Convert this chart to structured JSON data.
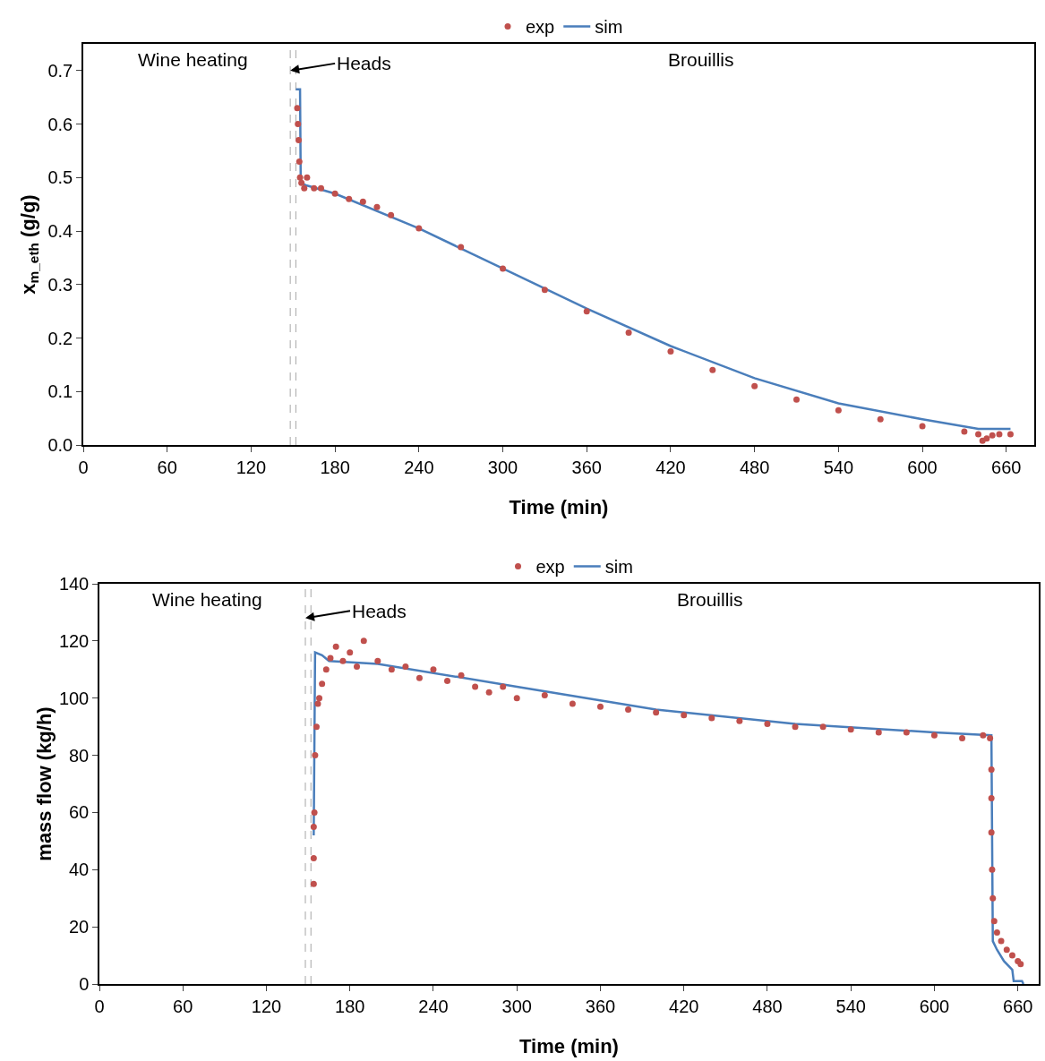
{
  "chart_data": [
    {
      "type": "scatter",
      "xlabel": "Time (min)",
      "ylabel": "x$_{m_eth}$ (g/g)",
      "xlim": [
        0,
        680
      ],
      "xticks": [
        0,
        60,
        120,
        180,
        240,
        300,
        360,
        420,
        480,
        540,
        600,
        660
      ],
      "ylim": [
        0,
        0.75
      ],
      "yticks": [
        {
          "value": 0,
          "label": "0.0"
        },
        0.1,
        0.2,
        0.3,
        0.4,
        0.5,
        0.6,
        0.7
      ],
      "grid": false,
      "legend": "top",
      "annotations": [
        "Wine heating",
        {
          "text": "Heads",
          "x": 148,
          "y": 0.7
        },
        "Brouillis"
      ],
      "ref_lines": [
        {
          "axis": "x",
          "value": 148,
          "color": "#a6a6a6",
          "line_style": "dashed"
        },
        {
          "axis": "x",
          "value": 152,
          "color": "#a6a6a6",
          "line_style": "dashed"
        }
      ],
      "series": [
        {
          "name": "exp",
          "type": "scatter",
          "marker": "circle",
          "color": "#c0504d",
          "x": [
            153,
            153.5,
            154,
            154.5,
            155,
            156,
            158,
            160,
            165,
            170,
            180,
            190,
            200,
            210,
            220,
            240,
            270,
            300,
            330,
            360,
            390,
            420,
            450,
            480,
            510,
            540,
            570,
            600,
            630,
            640,
            643,
            646,
            650,
            655,
            663
          ],
          "values": [
            0.63,
            0.6,
            0.57,
            0.53,
            0.5,
            0.49,
            0.48,
            0.5,
            0.48,
            0.48,
            0.47,
            0.46,
            0.455,
            0.445,
            0.43,
            0.405,
            0.37,
            0.33,
            0.29,
            0.25,
            0.21,
            0.175,
            0.14,
            0.11,
            0.085,
            0.065,
            0.048,
            0.035,
            0.025,
            0.02,
            0.008,
            0.012,
            0.018,
            0.02,
            0.02
          ]
        },
        {
          "name": "sim",
          "type": "line",
          "marker": "none",
          "line_style": "solid",
          "color": "#4a7ebb",
          "x": [
            152,
            155,
            155.5,
            160,
            180,
            240,
            300,
            360,
            420,
            480,
            540,
            600,
            640,
            663
          ],
          "values": [
            0.665,
            0.665,
            0.49,
            0.485,
            0.47,
            0.405,
            0.33,
            0.255,
            0.185,
            0.125,
            0.078,
            0.048,
            0.03,
            0.03
          ]
        }
      ]
    },
    {
      "type": "scatter",
      "xlabel": "Time (min)",
      "ylabel": "mass flow (kg/h)",
      "xlim": [
        0,
        675
      ],
      "xticks": [
        0,
        60,
        120,
        180,
        240,
        300,
        360,
        420,
        480,
        540,
        600,
        660
      ],
      "ylim": [
        0,
        140
      ],
      "yticks": [
        0,
        20,
        40,
        60,
        80,
        100,
        120,
        140
      ],
      "grid": false,
      "legend": "top",
      "annotations": [
        "Wine heating",
        {
          "text": "Heads",
          "x": 148,
          "y": 128
        },
        "Brouillis"
      ],
      "ref_lines": [
        {
          "axis": "x",
          "value": 148,
          "color": "#a6a6a6",
          "line_style": "dashed"
        },
        {
          "axis": "x",
          "value": 152,
          "color": "#a6a6a6",
          "line_style": "dashed"
        }
      ],
      "series": [
        {
          "name": "exp",
          "type": "scatter",
          "marker": "circle",
          "color": "#c0504d",
          "x": [
            154,
            154,
            154,
            154.5,
            155,
            156,
            157,
            158,
            160,
            163,
            166,
            170,
            175,
            180,
            185,
            190,
            200,
            210,
            220,
            230,
            240,
            250,
            260,
            270,
            280,
            290,
            300,
            320,
            340,
            360,
            380,
            400,
            420,
            440,
            460,
            480,
            500,
            520,
            540,
            560,
            580,
            600,
            620,
            635,
            640,
            641,
            641,
            641,
            641.5,
            642,
            643,
            645,
            648,
            652,
            656,
            660,
            662
          ],
          "values": [
            35,
            44,
            55,
            60,
            80,
            90,
            98,
            100,
            105,
            110,
            114,
            118,
            113,
            116,
            111,
            120,
            113,
            110,
            111,
            107,
            110,
            106,
            108,
            104,
            102,
            104,
            100,
            101,
            98,
            97,
            96,
            95,
            94,
            93,
            92,
            91,
            90,
            90,
            89,
            88,
            88,
            87,
            86,
            87,
            86,
            75,
            65,
            53,
            40,
            30,
            22,
            18,
            15,
            12,
            10,
            8,
            7
          ]
        },
        {
          "name": "sim",
          "type": "line",
          "marker": "none",
          "line_style": "solid",
          "color": "#4a7ebb",
          "x": [
            154,
            155,
            160,
            165,
            200,
            300,
            400,
            500,
            600,
            641,
            642,
            645,
            650,
            656,
            657,
            663,
            664
          ],
          "values": [
            52,
            116,
            115,
            113,
            112,
            104,
            96,
            91,
            88,
            87,
            15,
            12,
            8,
            5,
            1,
            1,
            0
          ]
        }
      ]
    }
  ]
}
